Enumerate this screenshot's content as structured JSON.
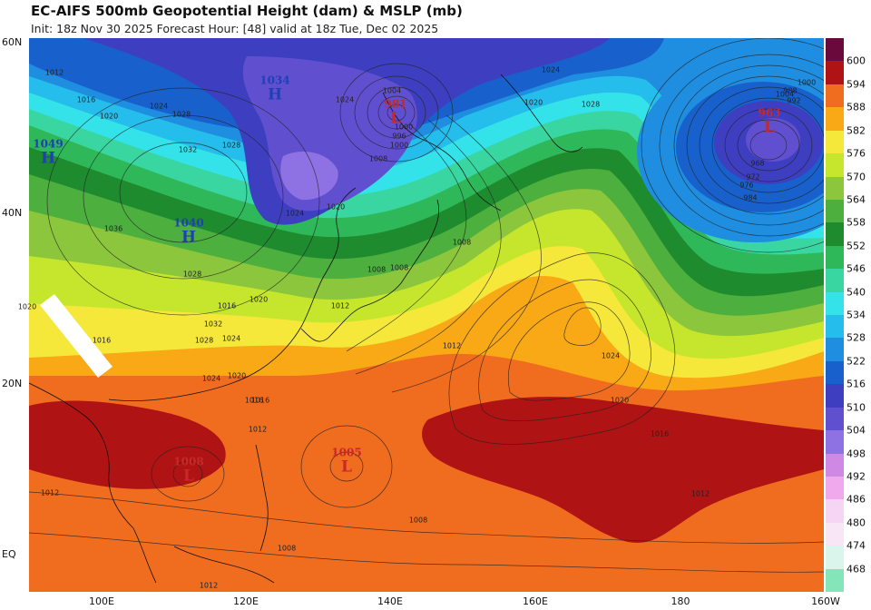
{
  "header": {
    "title": "EC-AIFS 500mb Geopotential Height (dam) & MSLP (mb)",
    "subtitle": "Init: 18z Nov 30 2025   Forecast Hour: [48]   valid at 18z Tue, Dec 02 2025"
  },
  "axes": {
    "lat_labels": [
      "60N",
      "40N",
      "20N",
      "EQ"
    ],
    "lon_labels": [
      "100E",
      "120E",
      "140E",
      "160E",
      "180",
      "160W"
    ]
  },
  "colorbar": {
    "labels": [
      "600",
      "594",
      "588",
      "582",
      "576",
      "570",
      "564",
      "558",
      "552",
      "546",
      "540",
      "534",
      "528",
      "522",
      "516",
      "510",
      "504",
      "498",
      "492",
      "486",
      "480",
      "474",
      "468"
    ],
    "colors": [
      "#6a0a3c",
      "#b01313",
      "#f06c1e",
      "#f8a915",
      "#f5e83b",
      "#c6e62d",
      "#8cc63c",
      "#4caf3e",
      "#1e8c2e",
      "#2fb85a",
      "#3ad6a1",
      "#34e3ea",
      "#25bdeb",
      "#1f8ee0",
      "#1861cc",
      "#3d3fc0",
      "#6050d0",
      "#8e72e3",
      "#cf88e4",
      "#f1a9ed",
      "#f6d4f4",
      "#f8e6f6",
      "#d9f5ec",
      "#84e6b8"
    ]
  },
  "centers": [
    {
      "id": "high-nw",
      "type": "H",
      "value": "1049",
      "color": "#1f3fb5"
    },
    {
      "id": "high-mongolia",
      "type": "H",
      "value": "1034",
      "color": "#1f3fb5"
    },
    {
      "id": "high-china",
      "type": "H",
      "value": "1040",
      "color": "#1f3fb5"
    },
    {
      "id": "low-okhotsk",
      "type": "L",
      "value": "981",
      "color": "#c8282a"
    },
    {
      "id": "low-aleutian",
      "type": "L",
      "value": "963",
      "color": "#c8282a"
    },
    {
      "id": "low-scs",
      "type": "L",
      "value": "1008",
      "color": "#c8282a"
    },
    {
      "id": "low-wpac",
      "type": "L",
      "value": "1005",
      "color": "#c8282a"
    }
  ],
  "isobar_labels": [
    "1012",
    "1016",
    "1020",
    "1024",
    "1028",
    "1032",
    "1036",
    "1024",
    "1028",
    "1024",
    "1020",
    "1004",
    "1000",
    "996",
    "1000",
    "1008",
    "1024",
    "1020",
    "1016",
    "1012",
    "1008",
    "1028",
    "1024",
    "1020",
    "1016",
    "1012",
    "1008",
    "1004",
    "1000",
    "992",
    "988",
    "984",
    "976",
    "972",
    "968",
    "1028",
    "1032",
    "1020",
    "1016",
    "1012",
    "1024",
    "1020",
    "1016",
    "1012",
    "1008",
    "1012",
    "1008",
    "1008",
    "1012",
    "1016",
    "1020",
    "1024",
    "1028",
    "1032"
  ]
}
